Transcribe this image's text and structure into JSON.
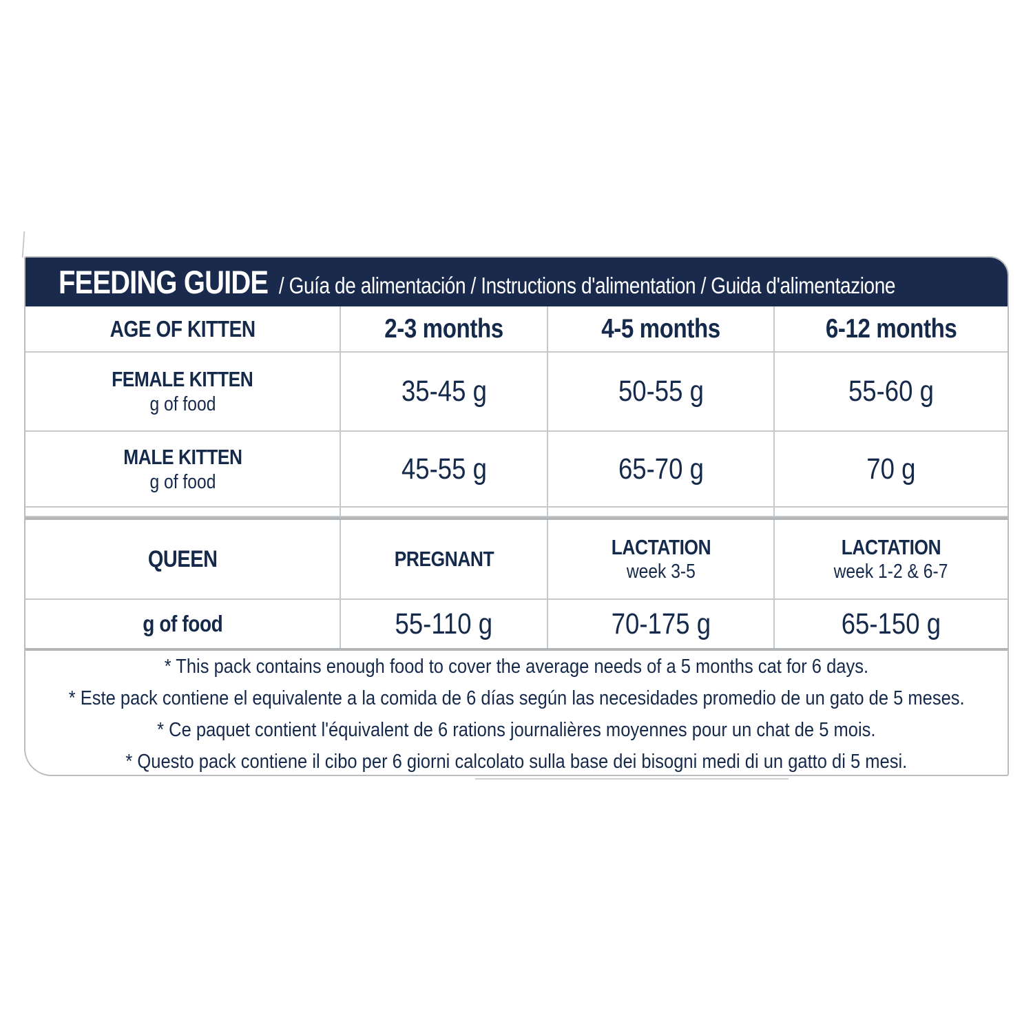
{
  "header": {
    "title": "FEEDING GUIDE",
    "subtitle": "/ Guía de alimentación / Instructions d'alimentation / Guida d'alimentazione"
  },
  "kitten_table": {
    "age_header": {
      "label": "AGE OF KITTEN",
      "columns": [
        "2-3 months",
        "4-5 months",
        "6-12 months"
      ]
    },
    "rows": [
      {
        "label": "FEMALE KITTEN",
        "sublabel": "g of food",
        "values": [
          "35-45 g",
          "50-55 g",
          "55-60 g"
        ]
      },
      {
        "label": "MALE KITTEN",
        "sublabel": "g of food",
        "values": [
          "45-55 g",
          "65-70 g",
          "70 g"
        ]
      }
    ]
  },
  "queen_table": {
    "header_label": "QUEEN",
    "columns": [
      {
        "title": "PREGNANT",
        "subtitle": ""
      },
      {
        "title": "LACTATION",
        "subtitle": "week 3-5"
      },
      {
        "title": "LACTATION",
        "subtitle": "week 1-2 & 6-7"
      }
    ],
    "row": {
      "label": "g of food",
      "values": [
        "55-110 g",
        "70-175 g",
        "65-150 g"
      ]
    }
  },
  "footnotes": [
    "* This pack contains enough food to cover the average needs of a 5 months cat for 6 days.",
    "* Este pack contiene el equivalente a la comida de 6 días según las necesidades promedio de un gato de 5 meses.",
    "* Ce paquet contient l'équivalent de 6 rations journalières moyennes pour un chat de 5 mois.",
    "* Questo pack contiene il cibo per 6 giorni calcolato sulla base dei bisogni medi di un gatto di 5 mesi."
  ],
  "colors": {
    "navy_header_bg": "#1a2a4c",
    "text_navy": "#15294b",
    "border_thin": "#c6c9cc",
    "border_thick": "#b2b5b8",
    "panel_outline": "#b9bcbf"
  }
}
